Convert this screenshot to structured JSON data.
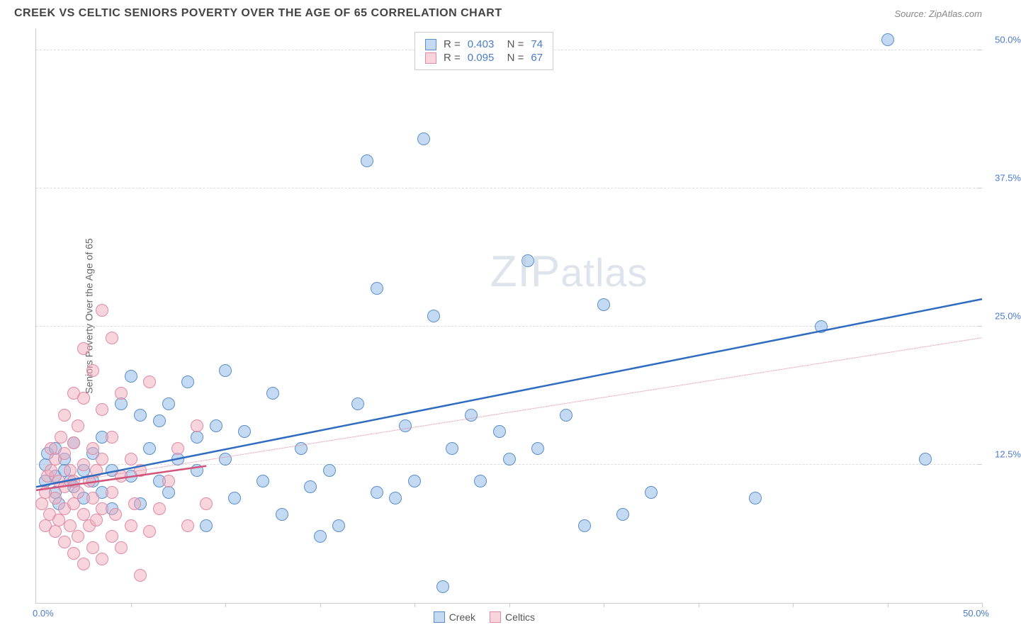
{
  "header": {
    "title": "CREEK VS CELTIC SENIORS POVERTY OVER THE AGE OF 65 CORRELATION CHART",
    "source_prefix": "Source: ",
    "source_name": "ZipAtlas.com"
  },
  "chart": {
    "type": "scatter",
    "ylabel": "Seniors Poverty Over the Age of 65",
    "xlim": [
      0,
      50
    ],
    "ylim": [
      0,
      52
    ],
    "xtick_positions": [
      5,
      10,
      15,
      20,
      25,
      30,
      35,
      40,
      45,
      50
    ],
    "yticks": [
      {
        "pos": 12.5,
        "label": "12.5%"
      },
      {
        "pos": 25.0,
        "label": "25.0%"
      },
      {
        "pos": 37.5,
        "label": "37.5%"
      },
      {
        "pos": 50.0,
        "label": "50.0%"
      }
    ],
    "xaxis_min_label": "0.0%",
    "xaxis_max_label": "50.0%",
    "background_color": "#ffffff",
    "grid_color": "#dddddd",
    "axis_color": "#cccccc",
    "tick_label_color": "#4a7bc8",
    "marker_radius": 9,
    "series": [
      {
        "name": "Creek",
        "color_fill": "rgba(135,181,230,0.5)",
        "color_stroke": "#5b8fc9",
        "trend": {
          "x1": 0,
          "y1": 10.5,
          "x2": 50,
          "y2": 27.5,
          "stroke": "#2f6cc0",
          "width": 2.5,
          "dash": "none"
        },
        "trend_dashed": {
          "x1": 0,
          "y1": 10.5,
          "x2": 50,
          "y2": 24.0,
          "stroke": "#e08aa3",
          "width": 1,
          "dash": "4,4"
        },
        "stats": {
          "R": "0.403",
          "N": "74"
        },
        "points": [
          [
            0.5,
            11
          ],
          [
            0.5,
            12.5
          ],
          [
            0.6,
            13.5
          ],
          [
            1,
            10
          ],
          [
            1,
            11.5
          ],
          [
            1,
            14
          ],
          [
            1.2,
            9
          ],
          [
            1.5,
            12
          ],
          [
            1.5,
            13
          ],
          [
            1.8,
            11
          ],
          [
            2,
            10.5
          ],
          [
            2,
            14.5
          ],
          [
            2.5,
            9.5
          ],
          [
            2.5,
            12
          ],
          [
            3,
            11
          ],
          [
            3,
            13.5
          ],
          [
            3.5,
            10
          ],
          [
            3.5,
            15
          ],
          [
            4,
            8.5
          ],
          [
            4,
            12
          ],
          [
            4.5,
            18
          ],
          [
            5,
            11.5
          ],
          [
            5,
            20.5
          ],
          [
            5.5,
            9
          ],
          [
            5.5,
            17
          ],
          [
            6,
            14
          ],
          [
            6.5,
            11
          ],
          [
            6.5,
            16.5
          ],
          [
            7,
            10
          ],
          [
            7,
            18
          ],
          [
            7.5,
            13
          ],
          [
            8,
            20
          ],
          [
            8.5,
            15
          ],
          [
            8.5,
            12
          ],
          [
            9,
            7
          ],
          [
            9.5,
            16
          ],
          [
            10,
            21
          ],
          [
            10,
            13
          ],
          [
            10.5,
            9.5
          ],
          [
            11,
            15.5
          ],
          [
            12,
            11
          ],
          [
            12.5,
            19
          ],
          [
            13,
            8
          ],
          [
            14,
            14
          ],
          [
            14.5,
            10.5
          ],
          [
            15,
            6
          ],
          [
            15.5,
            12
          ],
          [
            16,
            7
          ],
          [
            17,
            18
          ],
          [
            17.5,
            40
          ],
          [
            18,
            10
          ],
          [
            18,
            28.5
          ],
          [
            19,
            9.5
          ],
          [
            19.5,
            16
          ],
          [
            20,
            11
          ],
          [
            20.5,
            42
          ],
          [
            21,
            26
          ],
          [
            21.5,
            1.5
          ],
          [
            22,
            14
          ],
          [
            23,
            17
          ],
          [
            23.5,
            11
          ],
          [
            24.5,
            15.5
          ],
          [
            25,
            13
          ],
          [
            26,
            31
          ],
          [
            26.5,
            14
          ],
          [
            28,
            17
          ],
          [
            29,
            7
          ],
          [
            30,
            27
          ],
          [
            31,
            8
          ],
          [
            32.5,
            10
          ],
          [
            38,
            9.5
          ],
          [
            41.5,
            25
          ],
          [
            45,
            51
          ],
          [
            47,
            13
          ]
        ]
      },
      {
        "name": "Celtics",
        "color_fill": "rgba(241,169,187,0.5)",
        "color_stroke": "#e08aa3",
        "trend": {
          "x1": 0,
          "y1": 10.2,
          "x2": 9,
          "y2": 12.4,
          "stroke": "#d3547a",
          "width": 2.5,
          "dash": "none"
        },
        "stats": {
          "R": "0.095",
          "N": "67"
        },
        "points": [
          [
            0.3,
            9
          ],
          [
            0.5,
            7
          ],
          [
            0.5,
            10
          ],
          [
            0.6,
            11.5
          ],
          [
            0.7,
            8
          ],
          [
            0.8,
            12
          ],
          [
            0.8,
            14
          ],
          [
            1,
            6.5
          ],
          [
            1,
            9.5
          ],
          [
            1,
            13
          ],
          [
            1.2,
            7.5
          ],
          [
            1.2,
            11
          ],
          [
            1.3,
            15
          ],
          [
            1.5,
            5.5
          ],
          [
            1.5,
            8.5
          ],
          [
            1.5,
            10.5
          ],
          [
            1.5,
            13.5
          ],
          [
            1.5,
            17
          ],
          [
            1.8,
            7
          ],
          [
            1.8,
            12
          ],
          [
            2,
            4.5
          ],
          [
            2,
            9
          ],
          [
            2,
            11
          ],
          [
            2,
            14.5
          ],
          [
            2,
            19
          ],
          [
            2.2,
            6
          ],
          [
            2.2,
            10
          ],
          [
            2.2,
            16
          ],
          [
            2.5,
            3.5
          ],
          [
            2.5,
            8
          ],
          [
            2.5,
            12.5
          ],
          [
            2.5,
            18.5
          ],
          [
            2.5,
            23
          ],
          [
            2.8,
            7
          ],
          [
            2.8,
            11
          ],
          [
            3,
            5
          ],
          [
            3,
            9.5
          ],
          [
            3,
            14
          ],
          [
            3,
            21
          ],
          [
            3.2,
            7.5
          ],
          [
            3.2,
            12
          ],
          [
            3.5,
            4
          ],
          [
            3.5,
            8.5
          ],
          [
            3.5,
            13
          ],
          [
            3.5,
            17.5
          ],
          [
            3.5,
            26.5
          ],
          [
            4,
            6
          ],
          [
            4,
            10
          ],
          [
            4,
            15
          ],
          [
            4,
            24
          ],
          [
            4.2,
            8
          ],
          [
            4.5,
            5
          ],
          [
            4.5,
            11.5
          ],
          [
            4.5,
            19
          ],
          [
            5,
            7
          ],
          [
            5,
            13
          ],
          [
            5.2,
            9
          ],
          [
            5.5,
            2.5
          ],
          [
            5.5,
            12
          ],
          [
            6,
            6.5
          ],
          [
            6,
            20
          ],
          [
            6.5,
            8.5
          ],
          [
            7,
            11
          ],
          [
            7.5,
            14
          ],
          [
            8,
            7
          ],
          [
            8.5,
            16
          ],
          [
            9,
            9
          ]
        ]
      }
    ],
    "legend_bottom": [
      {
        "swatch": "blue",
        "label": "Creek"
      },
      {
        "swatch": "pink",
        "label": "Celtics"
      }
    ],
    "watermark": {
      "part1": "ZIP",
      "part2": "atlas"
    }
  }
}
